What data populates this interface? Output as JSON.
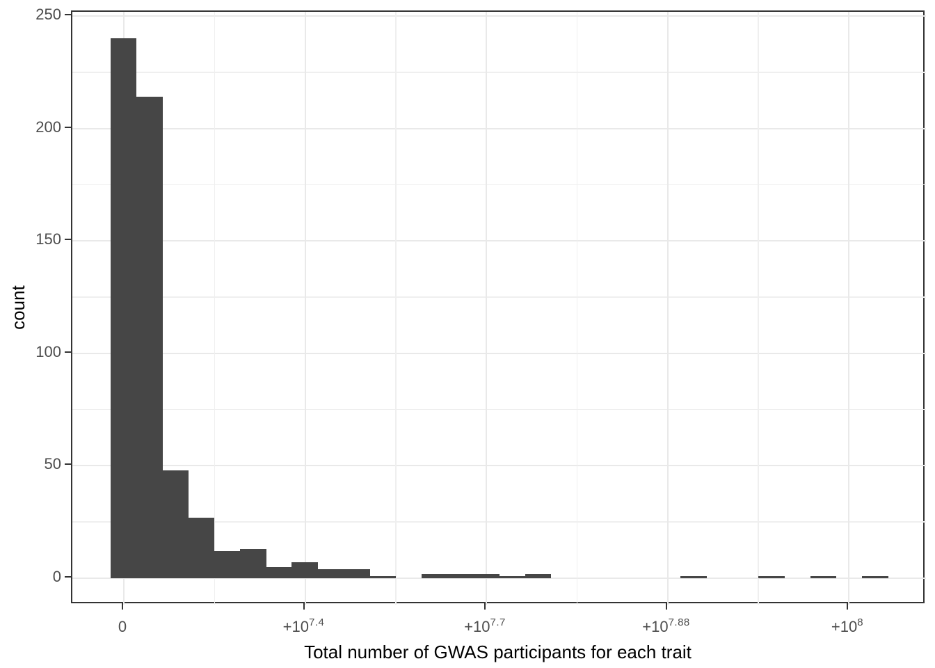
{
  "chart_data": {
    "type": "histogram",
    "title": "",
    "xlabel": "Total number of GWAS participants for each trait",
    "ylabel": "count",
    "bar_color": "#464646",
    "n_bins": 30,
    "counts": [
      240,
      214,
      48,
      27,
      12,
      13,
      5,
      7,
      4,
      4,
      1,
      0,
      2,
      2,
      2,
      1,
      2,
      0,
      0,
      0,
      0,
      0,
      1,
      0,
      0,
      1,
      0,
      1,
      0,
      1
    ],
    "ylim": [
      0,
      250
    ],
    "y_ticks": [
      0,
      50,
      100,
      150,
      200,
      250
    ],
    "y_minor_ticks": [
      25,
      75,
      125,
      175,
      225
    ],
    "x_ticks": [
      {
        "base": "0",
        "exp": ""
      },
      {
        "base": "+10",
        "exp": "7.4"
      },
      {
        "base": "+10",
        "exp": "7.7"
      },
      {
        "base": "+10",
        "exp": "7.88"
      },
      {
        "base": "+10",
        "exp": "8"
      }
    ],
    "x_scale_note": "pseudo-log x axis; labeled ticks evenly spaced with one minor gridline between each pair",
    "grid": "major and minor, light gray, theme_bw style panel with dark border",
    "legend": "none"
  }
}
